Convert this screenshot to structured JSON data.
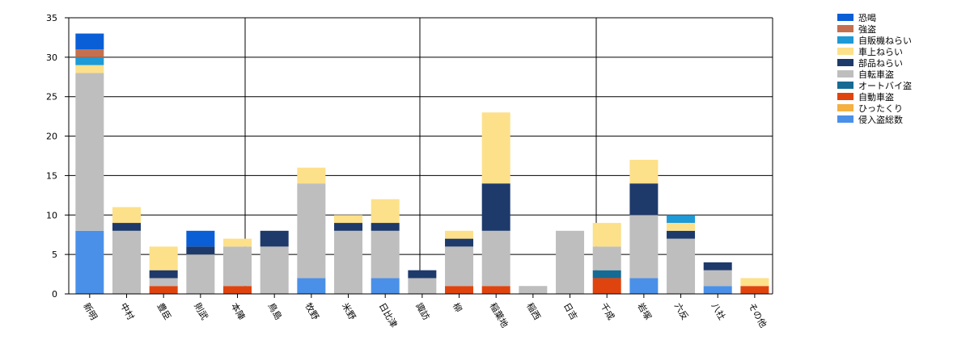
{
  "chart_data": {
    "type": "bar",
    "stacked": true,
    "ylim": [
      0,
      35
    ],
    "yticks": [
      0,
      5,
      10,
      15,
      20,
      25,
      30,
      35
    ],
    "grid": true,
    "legend_position": "top-right",
    "categories": [
      "新明",
      "中村",
      "豊臣",
      "則武",
      "本陣",
      "鳥島",
      "牧野",
      "米野",
      "日比津",
      "諏訪",
      "柳",
      "稲葉地",
      "稲西",
      "日吉",
      "千成",
      "岩塚",
      "六反",
      "八社",
      "その他"
    ],
    "series": [
      {
        "name": "侵入盗総数",
        "color": "#4a90e8",
        "values": [
          8,
          0,
          0,
          0,
          0,
          0,
          2,
          0,
          2,
          0,
          0,
          0,
          0,
          0,
          0,
          2,
          0,
          1,
          0
        ]
      },
      {
        "name": "ひったくり",
        "color": "#f5b042",
        "values": [
          0,
          0,
          0,
          0,
          0,
          0,
          0,
          0,
          0,
          0,
          0,
          0,
          0,
          0,
          0,
          0,
          0,
          0,
          0
        ]
      },
      {
        "name": "自動車盗",
        "color": "#e0440e",
        "values": [
          0,
          0,
          1,
          0,
          1,
          0,
          0,
          0,
          0,
          0,
          1,
          1,
          0,
          0,
          2,
          0,
          0,
          0,
          1
        ]
      },
      {
        "name": "オートバイ盗",
        "color": "#156b93",
        "values": [
          0,
          0,
          0,
          0,
          0,
          0,
          0,
          0,
          0,
          0,
          0,
          0,
          0,
          0,
          1,
          0,
          0,
          0,
          0
        ]
      },
      {
        "name": "自転車盗",
        "color": "#bebebe",
        "values": [
          20,
          8,
          1,
          5,
          5,
          6,
          12,
          8,
          6,
          2,
          5,
          7,
          1,
          8,
          3,
          8,
          7,
          2,
          0
        ]
      },
      {
        "name": "部品ねらい",
        "color": "#1e3a6b",
        "values": [
          0,
          1,
          1,
          1,
          0,
          2,
          0,
          1,
          1,
          1,
          1,
          6,
          0,
          0,
          0,
          4,
          1,
          1,
          0
        ]
      },
      {
        "name": "車上ねらい",
        "color": "#fde08a",
        "values": [
          1,
          2,
          3,
          0,
          1,
          0,
          2,
          1,
          3,
          0,
          1,
          9,
          0,
          0,
          3,
          3,
          1,
          0,
          1
        ]
      },
      {
        "name": "自販機ねらい",
        "color": "#1e9ad6",
        "values": [
          1,
          0,
          0,
          0,
          0,
          0,
          0,
          0,
          0,
          0,
          0,
          0,
          0,
          0,
          0,
          0,
          1,
          0,
          0
        ]
      },
      {
        "name": "強盗",
        "color": "#c4704e",
        "values": [
          1,
          0,
          0,
          0,
          0,
          0,
          0,
          0,
          0,
          0,
          0,
          0,
          0,
          0,
          0,
          0,
          0,
          0,
          0
        ]
      },
      {
        "name": "恐喝",
        "color": "#0a5fd6",
        "values": [
          2,
          0,
          0,
          2,
          0,
          0,
          0,
          0,
          0,
          0,
          0,
          0,
          0,
          0,
          0,
          0,
          0,
          0,
          0
        ]
      }
    ]
  }
}
